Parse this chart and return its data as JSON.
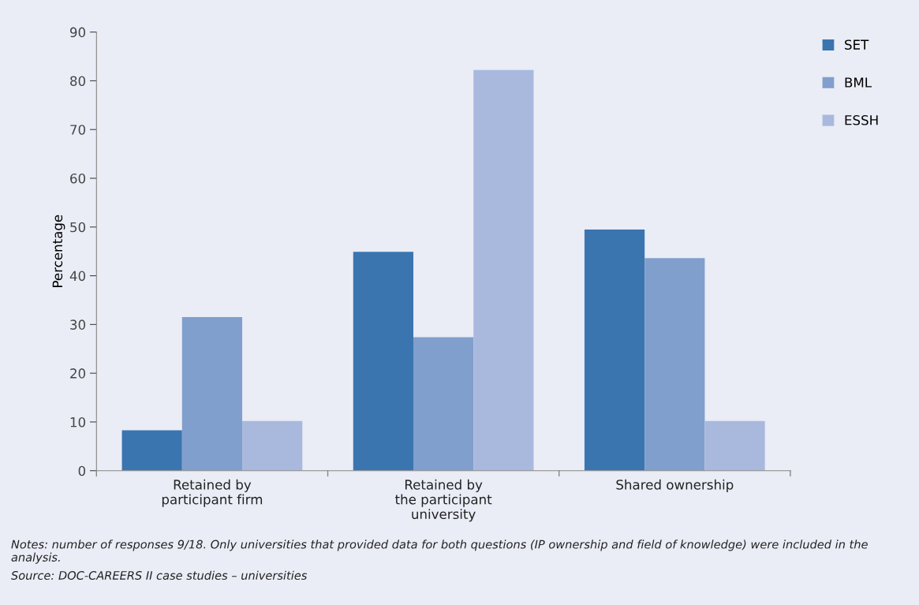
{
  "chart_data": {
    "type": "bar",
    "ylabel": "Percentage",
    "categories": [
      "Retained by\nparticipant firm",
      "Retained by\nthe participant\nuniversity",
      "Shared ownership"
    ],
    "series": [
      {
        "name": "SET",
        "color": "#3a75b0",
        "values": [
          8.3,
          44.9,
          49.5
        ]
      },
      {
        "name": "BML",
        "color": "#809fcc",
        "values": [
          31.5,
          27.4,
          43.6
        ]
      },
      {
        "name": "ESSH",
        "color": "#a9b9dd",
        "values": [
          10.2,
          82.2,
          10.2
        ]
      }
    ],
    "ylim": [
      0,
      90
    ],
    "yticks": [
      0,
      10,
      20,
      30,
      40,
      50,
      60,
      70,
      80,
      90
    ],
    "grid": false,
    "legend": "top right",
    "annotations": [
      "Notes: number of responses 9/18. Only universities that provided data for both questions (IP ownership and field of knowledge) were included in the analysis.",
      "Source: DOC-CAREERS II case studies – universities"
    ]
  }
}
